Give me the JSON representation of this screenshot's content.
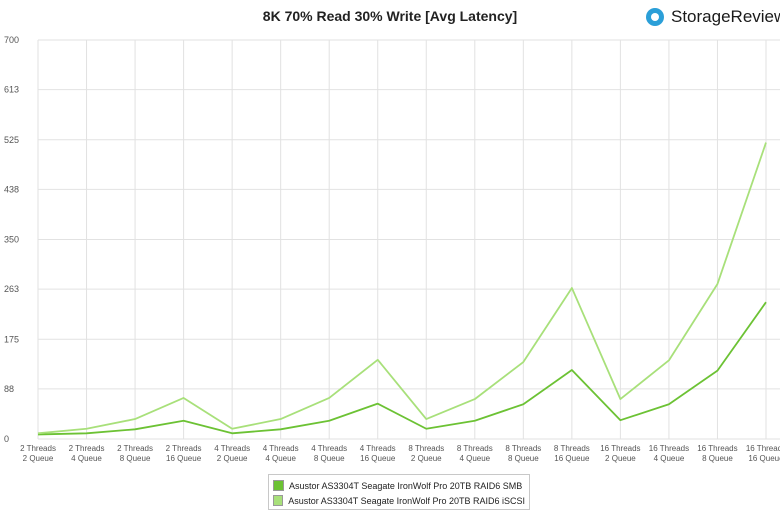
{
  "brand": {
    "name": "StorageReview",
    "icon": "storagereview-logo-icon",
    "accent": "#2b9fd8"
  },
  "chart_data": {
    "type": "line",
    "title": "8K 70% Read 30% Write [Avg Latency]",
    "xlabel": "",
    "ylabel": "",
    "categories": [
      [
        "2 Threads",
        "2 Queue"
      ],
      [
        "2 Threads",
        "4 Queue"
      ],
      [
        "2 Threads",
        "8 Queue"
      ],
      [
        "2 Threads",
        "16 Queue"
      ],
      [
        "4 Threads",
        "2 Queue"
      ],
      [
        "4 Threads",
        "4 Queue"
      ],
      [
        "4 Threads",
        "8 Queue"
      ],
      [
        "4 Threads",
        "16 Queue"
      ],
      [
        "8 Threads",
        "2 Queue"
      ],
      [
        "8 Threads",
        "4 Queue"
      ],
      [
        "8 Threads",
        "8 Queue"
      ],
      [
        "8 Threads",
        "16 Queue"
      ],
      [
        "16 Threads",
        "2 Queue"
      ],
      [
        "16 Threads",
        "4 Queue"
      ],
      [
        "16 Threads",
        "8 Queue"
      ],
      [
        "16 Threads",
        "16 Queue"
      ]
    ],
    "y_ticks": [
      "0",
      "88",
      "175",
      "263",
      "350",
      "438",
      "525",
      "613",
      "700"
    ],
    "ylim": [
      0,
      700
    ],
    "grid": true,
    "legend_position": "bottom-center",
    "series": [
      {
        "name": "Asustor AS3304T Seagate IronWolf Pro 20TB RAID6 SMB",
        "color": "#6cc234",
        "values": [
          8,
          10,
          17,
          32,
          10,
          17,
          32,
          62,
          18,
          32,
          61,
          121,
          33,
          61,
          120,
          240
        ]
      },
      {
        "name": "Asustor AS3304T Seagate IronWolf Pro 20TB RAID6 iSCSI",
        "color": "#a8e07a",
        "values": [
          10,
          18,
          35,
          72,
          18,
          35,
          72,
          139,
          35,
          70,
          135,
          265,
          70,
          138,
          272,
          520
        ]
      }
    ]
  }
}
